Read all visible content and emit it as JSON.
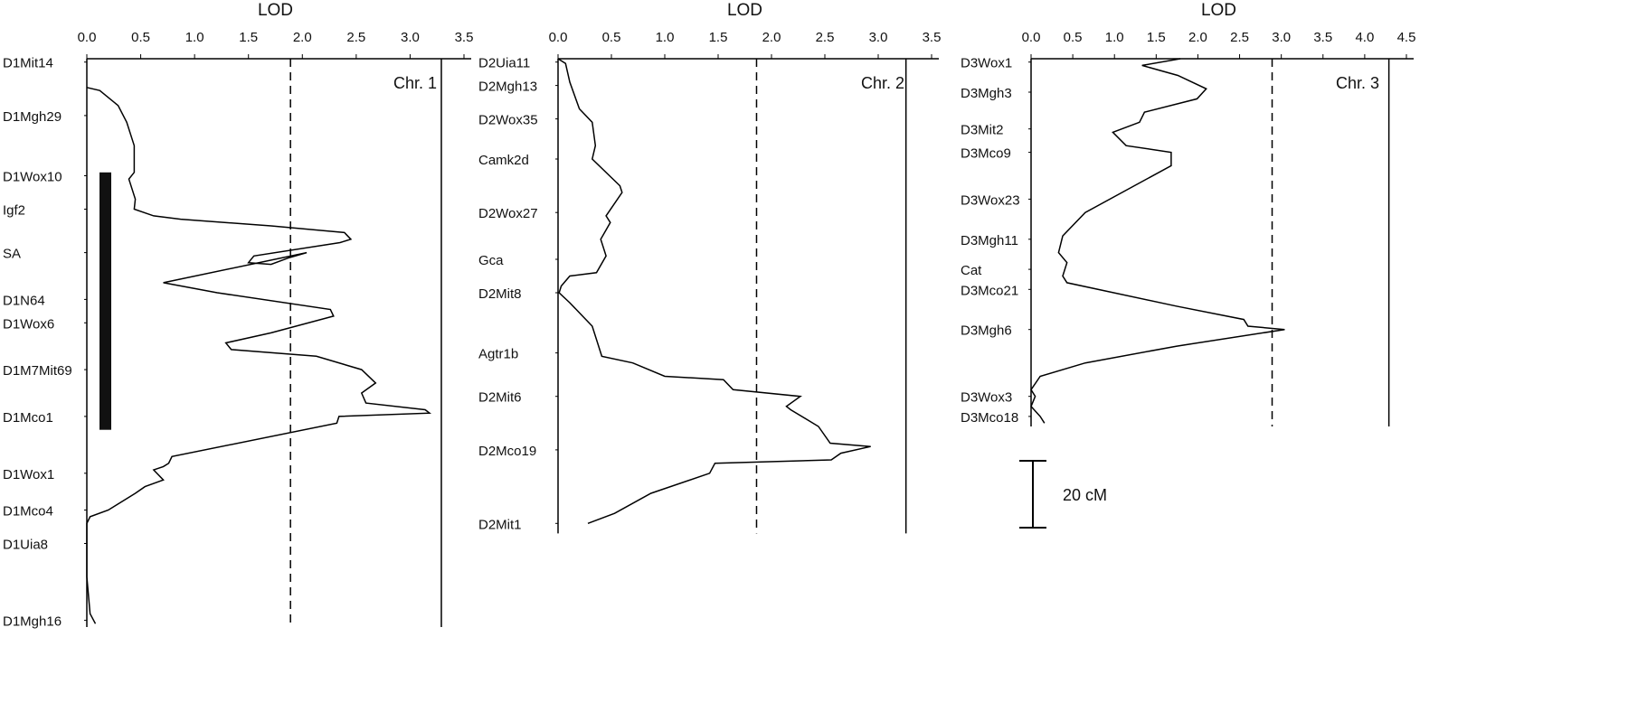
{
  "chart_data": [
    {
      "type": "line",
      "axis_label": "LOD",
      "panel_label": "Chr. 1",
      "xlim": [
        0,
        3.5
      ],
      "xticks": [
        {
          "value": 0,
          "label": "0.0"
        },
        0.5,
        {
          "value": 1,
          "label": "1.0"
        },
        1.5,
        {
          "value": 2,
          "label": "2.0"
        },
        2.5,
        {
          "value": 3,
          "label": "3.0"
        },
        3.5
      ],
      "ylim": [
        0,
        170
      ],
      "markers": [
        "D1Mit14",
        "D1Mgh29",
        "D1Wox10",
        "Igf2",
        "SA",
        "D1N64",
        "D1Wox6",
        "D1M7Mit69",
        "D1Mco1",
        "D1Wox1",
        "D1Mco4",
        "D1Uia8",
        "D1Mgh16"
      ],
      "marker_positions": [
        1,
        17,
        35,
        45,
        58,
        72,
        79,
        93,
        107,
        124,
        135,
        145,
        168
      ],
      "lod": [
        0,
        0.12,
        0.29,
        0.37,
        0.44,
        0.44,
        0.39,
        0.45,
        0.44,
        0.62,
        0.87,
        1.71,
        2.39,
        2.45,
        2.35,
        1.55,
        1.5,
        1.71,
        1.88,
        2.04,
        0.71,
        1.21,
        2.26,
        2.29,
        1.71,
        1.29,
        1.34,
        2.13,
        2.55,
        2.68,
        2.55,
        2.59,
        3.14,
        3.18,
        2.34,
        2.32,
        0.79,
        0.76,
        0.71,
        0.62,
        0.71,
        0.54,
        0.45,
        0.2,
        0.03,
        0,
        0,
        0.03,
        0.08
      ],
      "position": [
        8.6,
        9.5,
        14,
        19,
        26,
        34,
        36,
        42,
        45,
        47,
        48,
        50,
        52,
        54,
        55,
        59,
        61,
        61.5,
        59.5,
        58,
        67,
        70,
        75,
        77,
        82,
        85,
        87,
        89,
        93,
        97,
        100,
        103,
        105,
        106,
        107,
        109,
        119,
        121,
        122,
        123,
        126,
        128,
        130,
        135,
        137,
        139,
        155,
        166,
        169
      ],
      "thresholds": [
        {
          "value": 1.89,
          "style": "dashed"
        },
        {
          "value": 3.29,
          "style": "solid"
        }
      ],
      "interval": [
        34,
        111
      ]
    },
    {
      "type": "line",
      "axis_label": "LOD",
      "panel_label": "Chr. 2",
      "xlim": [
        0,
        3.5
      ],
      "xticks": [
        {
          "value": 0,
          "label": "0.0"
        },
        0.5,
        {
          "value": 1,
          "label": "1.0"
        },
        1.5,
        {
          "value": 2,
          "label": "2.0"
        },
        2.5,
        {
          "value": 3,
          "label": "3.0"
        },
        3.5
      ],
      "ylim": [
        0,
        142
      ],
      "markers": [
        "D2Uia11",
        "D2Mgh13",
        "D2Wox35",
        "Camk2d",
        "D2Wox27",
        "Gca",
        "D2Mit8",
        "Agtr1b",
        "D2Mit6",
        "D2Mco19",
        "D2Mit1"
      ],
      "marker_positions": [
        1,
        8,
        18,
        30,
        46,
        60,
        70,
        88,
        101,
        117,
        139
      ],
      "lod": [
        0,
        0.07,
        0.11,
        0.2,
        0.32,
        0.35,
        0.32,
        0.58,
        0.6,
        0.45,
        0.49,
        0.4,
        0.45,
        0.36,
        0.11,
        0.03,
        0.01,
        0.11,
        0.32,
        0.41,
        0.7,
        1.0,
        1.55,
        1.64,
        2.27,
        2.14,
        2.18,
        2.44,
        2.55,
        2.93,
        2.65,
        2.56,
        1.47,
        1.42,
        0.87,
        0.53,
        0.28
      ],
      "position": [
        0,
        1.4,
        7,
        15,
        19,
        26,
        30,
        38,
        40,
        47,
        49,
        54,
        59,
        64,
        65,
        68,
        70,
        73,
        80,
        89,
        91,
        95,
        96,
        99,
        101,
        104,
        105,
        110,
        115,
        116,
        118,
        120,
        121,
        124,
        130,
        136,
        139
      ],
      "thresholds": [
        {
          "value": 1.86,
          "style": "dashed"
        },
        {
          "value": 3.26,
          "style": "solid"
        }
      ]
    },
    {
      "type": "line",
      "axis_label": "LOD",
      "panel_label": "Chr. 3",
      "xlim": [
        0,
        4.5
      ],
      "xticks": [
        {
          "value": 0,
          "label": "0.0"
        },
        0.5,
        {
          "value": 1,
          "label": "1.0"
        },
        1.5,
        {
          "value": 2,
          "label": "2.0"
        },
        2.5,
        {
          "value": 3,
          "label": "3.0"
        },
        3.5,
        {
          "value": 4,
          "label": "4.0"
        },
        4.5
      ],
      "ylim": [
        0,
        110
      ],
      "markers": [
        "D3Wox1",
        "D3Mgh3",
        "D3Mit2",
        "D3Mco9",
        "D3Wox23",
        "D3Mgh11",
        "Cat",
        "D3Mco21",
        "D3Mgh6",
        "D3Wox3",
        "D3Mco18"
      ],
      "marker_positions": [
        1,
        10,
        21,
        28,
        42,
        54,
        63,
        69,
        81,
        101,
        107
      ],
      "lod": [
        1.79,
        1.33,
        1.76,
        2.1,
        1.99,
        1.36,
        1.3,
        0.98,
        1.14,
        1.68,
        1.68,
        0.65,
        0.38,
        0.33,
        0.43,
        0.38,
        0.43,
        1.74,
        2.55,
        2.6,
        3.04,
        1.74,
        0.65,
        0.11,
        0,
        0.05,
        0,
        0.11,
        0.16
      ],
      "position": [
        0,
        2,
        5,
        9,
        12,
        16,
        19,
        22,
        26,
        28,
        32,
        46,
        53,
        58,
        61,
        65,
        67,
        74,
        78,
        80,
        81,
        86,
        91,
        95,
        99,
        101,
        104,
        107,
        109
      ],
      "thresholds": [
        {
          "value": 2.89,
          "style": "dashed"
        },
        {
          "value": 4.29,
          "style": "solid"
        }
      ]
    }
  ],
  "scale_bar": {
    "label": "20 cM",
    "value": 20
  }
}
